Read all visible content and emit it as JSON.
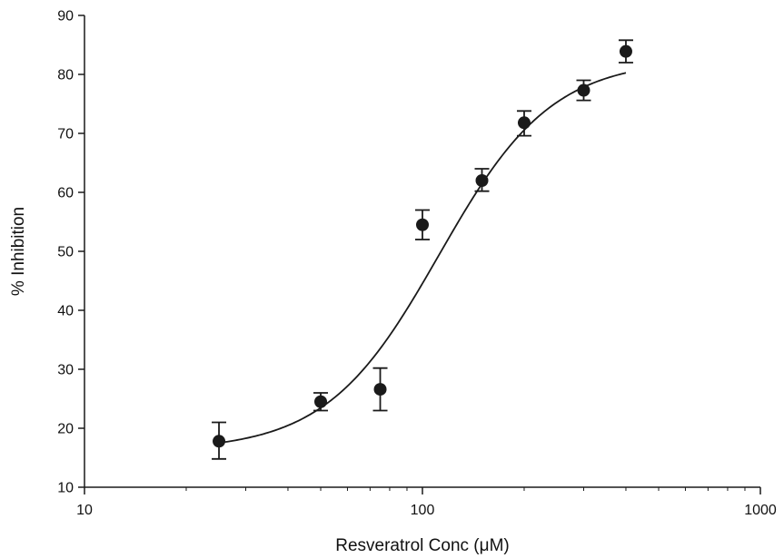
{
  "chart_data": {
    "type": "scatter",
    "xlabel": "Resveratrol Conc (μM)",
    "ylabel": "% Inhibition",
    "x_scale": "log",
    "xlim": [
      10,
      1000
    ],
    "ylim": [
      10,
      90
    ],
    "x_ticks": [
      10,
      100,
      1000
    ],
    "x_tick_labels": [
      "10",
      "100",
      "1000"
    ],
    "y_ticks": [
      10,
      20,
      30,
      40,
      50,
      60,
      70,
      80,
      90
    ],
    "y_tick_labels": [
      "10",
      "20",
      "30",
      "40",
      "50",
      "60",
      "70",
      "80",
      "90"
    ],
    "grid": false,
    "legend": "none",
    "points": [
      {
        "x": 25,
        "y": 17.8,
        "err_low": 14.8,
        "err_high": 21.0
      },
      {
        "x": 50,
        "y": 24.5,
        "err_low": 23.0,
        "err_high": 26.0
      },
      {
        "x": 75,
        "y": 26.6,
        "err_low": 23.0,
        "err_high": 30.2
      },
      {
        "x": 100,
        "y": 54.5,
        "err_low": 52.0,
        "err_high": 57.0
      },
      {
        "x": 150,
        "y": 62.0,
        "err_low": 60.2,
        "err_high": 64.0
      },
      {
        "x": 200,
        "y": 71.8,
        "err_low": 69.6,
        "err_high": 73.8
      },
      {
        "x": 300,
        "y": 77.3,
        "err_low": 75.6,
        "err_high": 79.0
      },
      {
        "x": 400,
        "y": 83.9,
        "err_low": 82.0,
        "err_high": 85.8
      }
    ],
    "fit_curve": {
      "type": "four-parameter logistic",
      "bottom": 16.2,
      "top": 82.6,
      "ec50": 112,
      "hill": 2.6,
      "x_range": [
        25,
        400
      ]
    },
    "colors": {
      "marker": "#1a1a1a",
      "line": "#1a1a1a",
      "axis": "#1a1a1a"
    }
  }
}
